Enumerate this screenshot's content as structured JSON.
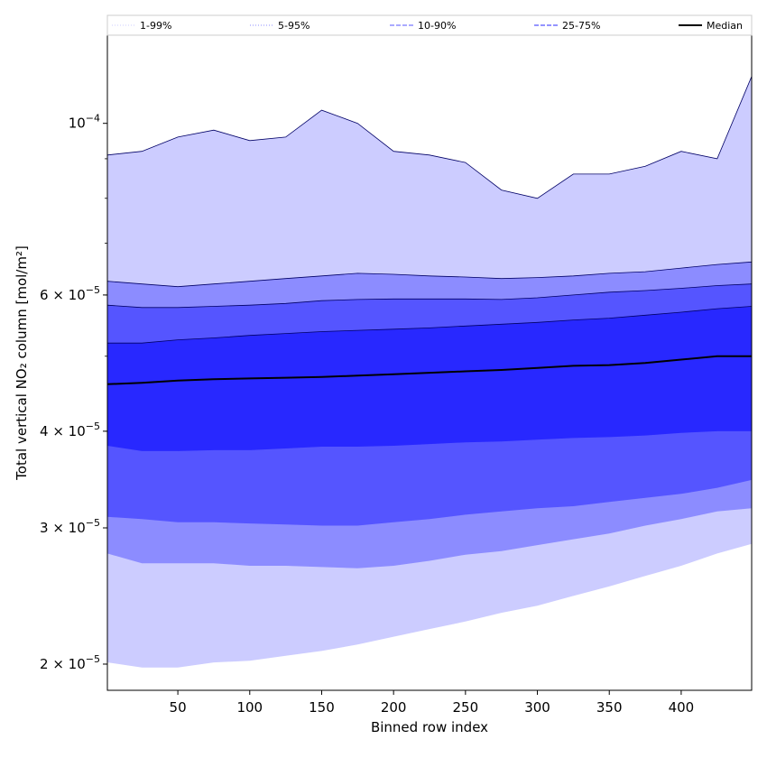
{
  "chart_data": {
    "type": "area",
    "title": "",
    "xlabel": "Binned row index",
    "ylabel": "Total vertical NO₂ column [mol/m²]",
    "xlim": [
      1,
      449
    ],
    "ylim": [
      1.85e-05,
      0.00013
    ],
    "yscale": "log",
    "grid": false,
    "legend_position": "top",
    "x_ticks": [
      50,
      100,
      150,
      200,
      250,
      300,
      350,
      400
    ],
    "y_ticks": [
      {
        "value": 2e-05,
        "mantissa": "2",
        "exponent": "−5"
      },
      {
        "value": 3e-05,
        "mantissa": "3",
        "exponent": "−5"
      },
      {
        "value": 4e-05,
        "mantissa": "4",
        "exponent": "−5"
      },
      {
        "value": 6e-05,
        "mantissa": "6",
        "exponent": "−5"
      },
      {
        "value": 0.0001,
        "mantissa": "",
        "exponent": "−4"
      }
    ],
    "x": [
      1,
      25,
      50,
      75,
      100,
      125,
      150,
      175,
      200,
      225,
      250,
      275,
      300,
      325,
      350,
      375,
      400,
      425,
      449
    ],
    "series": [
      {
        "name": "1-99%",
        "color": "#ccccff",
        "lower": [
          2.01e-05,
          1.98e-05,
          1.98e-05,
          2.01e-05,
          2.02e-05,
          2.05e-05,
          2.08e-05,
          2.12e-05,
          2.17e-05,
          2.22e-05,
          2.27e-05,
          2.33e-05,
          2.38e-05,
          2.45e-05,
          2.52e-05,
          2.6e-05,
          2.68e-05,
          2.78e-05,
          2.86e-05
        ],
        "upper": [
          9.1e-05,
          9.2e-05,
          9.6e-05,
          9.8e-05,
          9.5e-05,
          9.6e-05,
          0.000104,
          0.0001,
          9.2e-05,
          9.1e-05,
          8.9e-05,
          8.2e-05,
          8e-05,
          8.6e-05,
          8.6e-05,
          8.8e-05,
          9.2e-05,
          9e-05,
          0.000115
        ]
      },
      {
        "name": "5-95%",
        "color": "#8c8cff",
        "lower": [
          2.78e-05,
          2.7e-05,
          2.7e-05,
          2.7e-05,
          2.68e-05,
          2.68e-05,
          2.67e-05,
          2.66e-05,
          2.68e-05,
          2.72e-05,
          2.77e-05,
          2.8e-05,
          2.85e-05,
          2.9e-05,
          2.95e-05,
          3.02e-05,
          3.08e-05,
          3.15e-05,
          3.18e-05
        ]
      },
      {
        "name": "10-90%",
        "color": "#5555ff",
        "lower": [
          3.1e-05,
          3.08e-05,
          3.05e-05,
          3.05e-05,
          3.04e-05,
          3.03e-05,
          3.02e-05,
          3.02e-05,
          3.05e-05,
          3.08e-05,
          3.12e-05,
          3.15e-05,
          3.18e-05,
          3.2e-05,
          3.24e-05,
          3.28e-05,
          3.32e-05,
          3.38e-05,
          3.46e-05
        ]
      },
      {
        "name": "25-75%",
        "color": "#2828ff",
        "lower": [
          3.83e-05,
          3.77e-05,
          3.77e-05,
          3.78e-05,
          3.78e-05,
          3.8e-05,
          3.82e-05,
          3.82e-05,
          3.83e-05,
          3.85e-05,
          3.87e-05,
          3.88e-05,
          3.9e-05,
          3.92e-05,
          3.93e-05,
          3.95e-05,
          3.98e-05,
          4e-05,
          4e-05
        ]
      },
      {
        "name": "Median",
        "color": "#000000",
        "values": [
          4.6e-05,
          4.62e-05,
          4.65e-05,
          4.67e-05,
          4.68e-05,
          4.69e-05,
          4.7e-05,
          4.72e-05,
          4.74e-05,
          4.76e-05,
          4.78e-05,
          4.8e-05,
          4.83e-05,
          4.86e-05,
          4.87e-05,
          4.9e-05,
          4.95e-05,
          5e-05,
          5e-05
        ]
      }
    ],
    "upper_bounds": {
      "5-95%": [
        6.25e-05,
        6.2e-05,
        6.15e-05,
        6.2e-05,
        6.25e-05,
        6.3e-05,
        6.35e-05,
        6.4e-05,
        6.38e-05,
        6.35e-05,
        6.33e-05,
        6.3e-05,
        6.32e-05,
        6.35e-05,
        6.4e-05,
        6.43e-05,
        6.5e-05,
        6.57e-05,
        6.62e-05
      ],
      "10-90%": [
        5.82e-05,
        5.78e-05,
        5.78e-05,
        5.8e-05,
        5.82e-05,
        5.85e-05,
        5.9e-05,
        5.92e-05,
        5.93e-05,
        5.93e-05,
        5.93e-05,
        5.92e-05,
        5.95e-05,
        6e-05,
        6.05e-05,
        6.08e-05,
        6.12e-05,
        6.17e-05,
        6.2e-05
      ],
      "25-75%": [
        5.2e-05,
        5.2e-05,
        5.25e-05,
        5.28e-05,
        5.32e-05,
        5.35e-05,
        5.38e-05,
        5.4e-05,
        5.42e-05,
        5.44e-05,
        5.47e-05,
        5.5e-05,
        5.53e-05,
        5.57e-05,
        5.6e-05,
        5.65e-05,
        5.7e-05,
        5.76e-05,
        5.8e-05
      ]
    },
    "legend": [
      {
        "label": "1-99%",
        "color": "#ccccff",
        "dash": "dotted"
      },
      {
        "label": "5-95%",
        "color": "#8c8cff",
        "dash": "dotted"
      },
      {
        "label": "10-90%",
        "color": "#5555ff",
        "dash": "dashed"
      },
      {
        "label": "25-75%",
        "color": "#2828ff",
        "dash": "dashed"
      },
      {
        "label": "Median",
        "color": "#000000",
        "dash": "solid"
      }
    ]
  }
}
